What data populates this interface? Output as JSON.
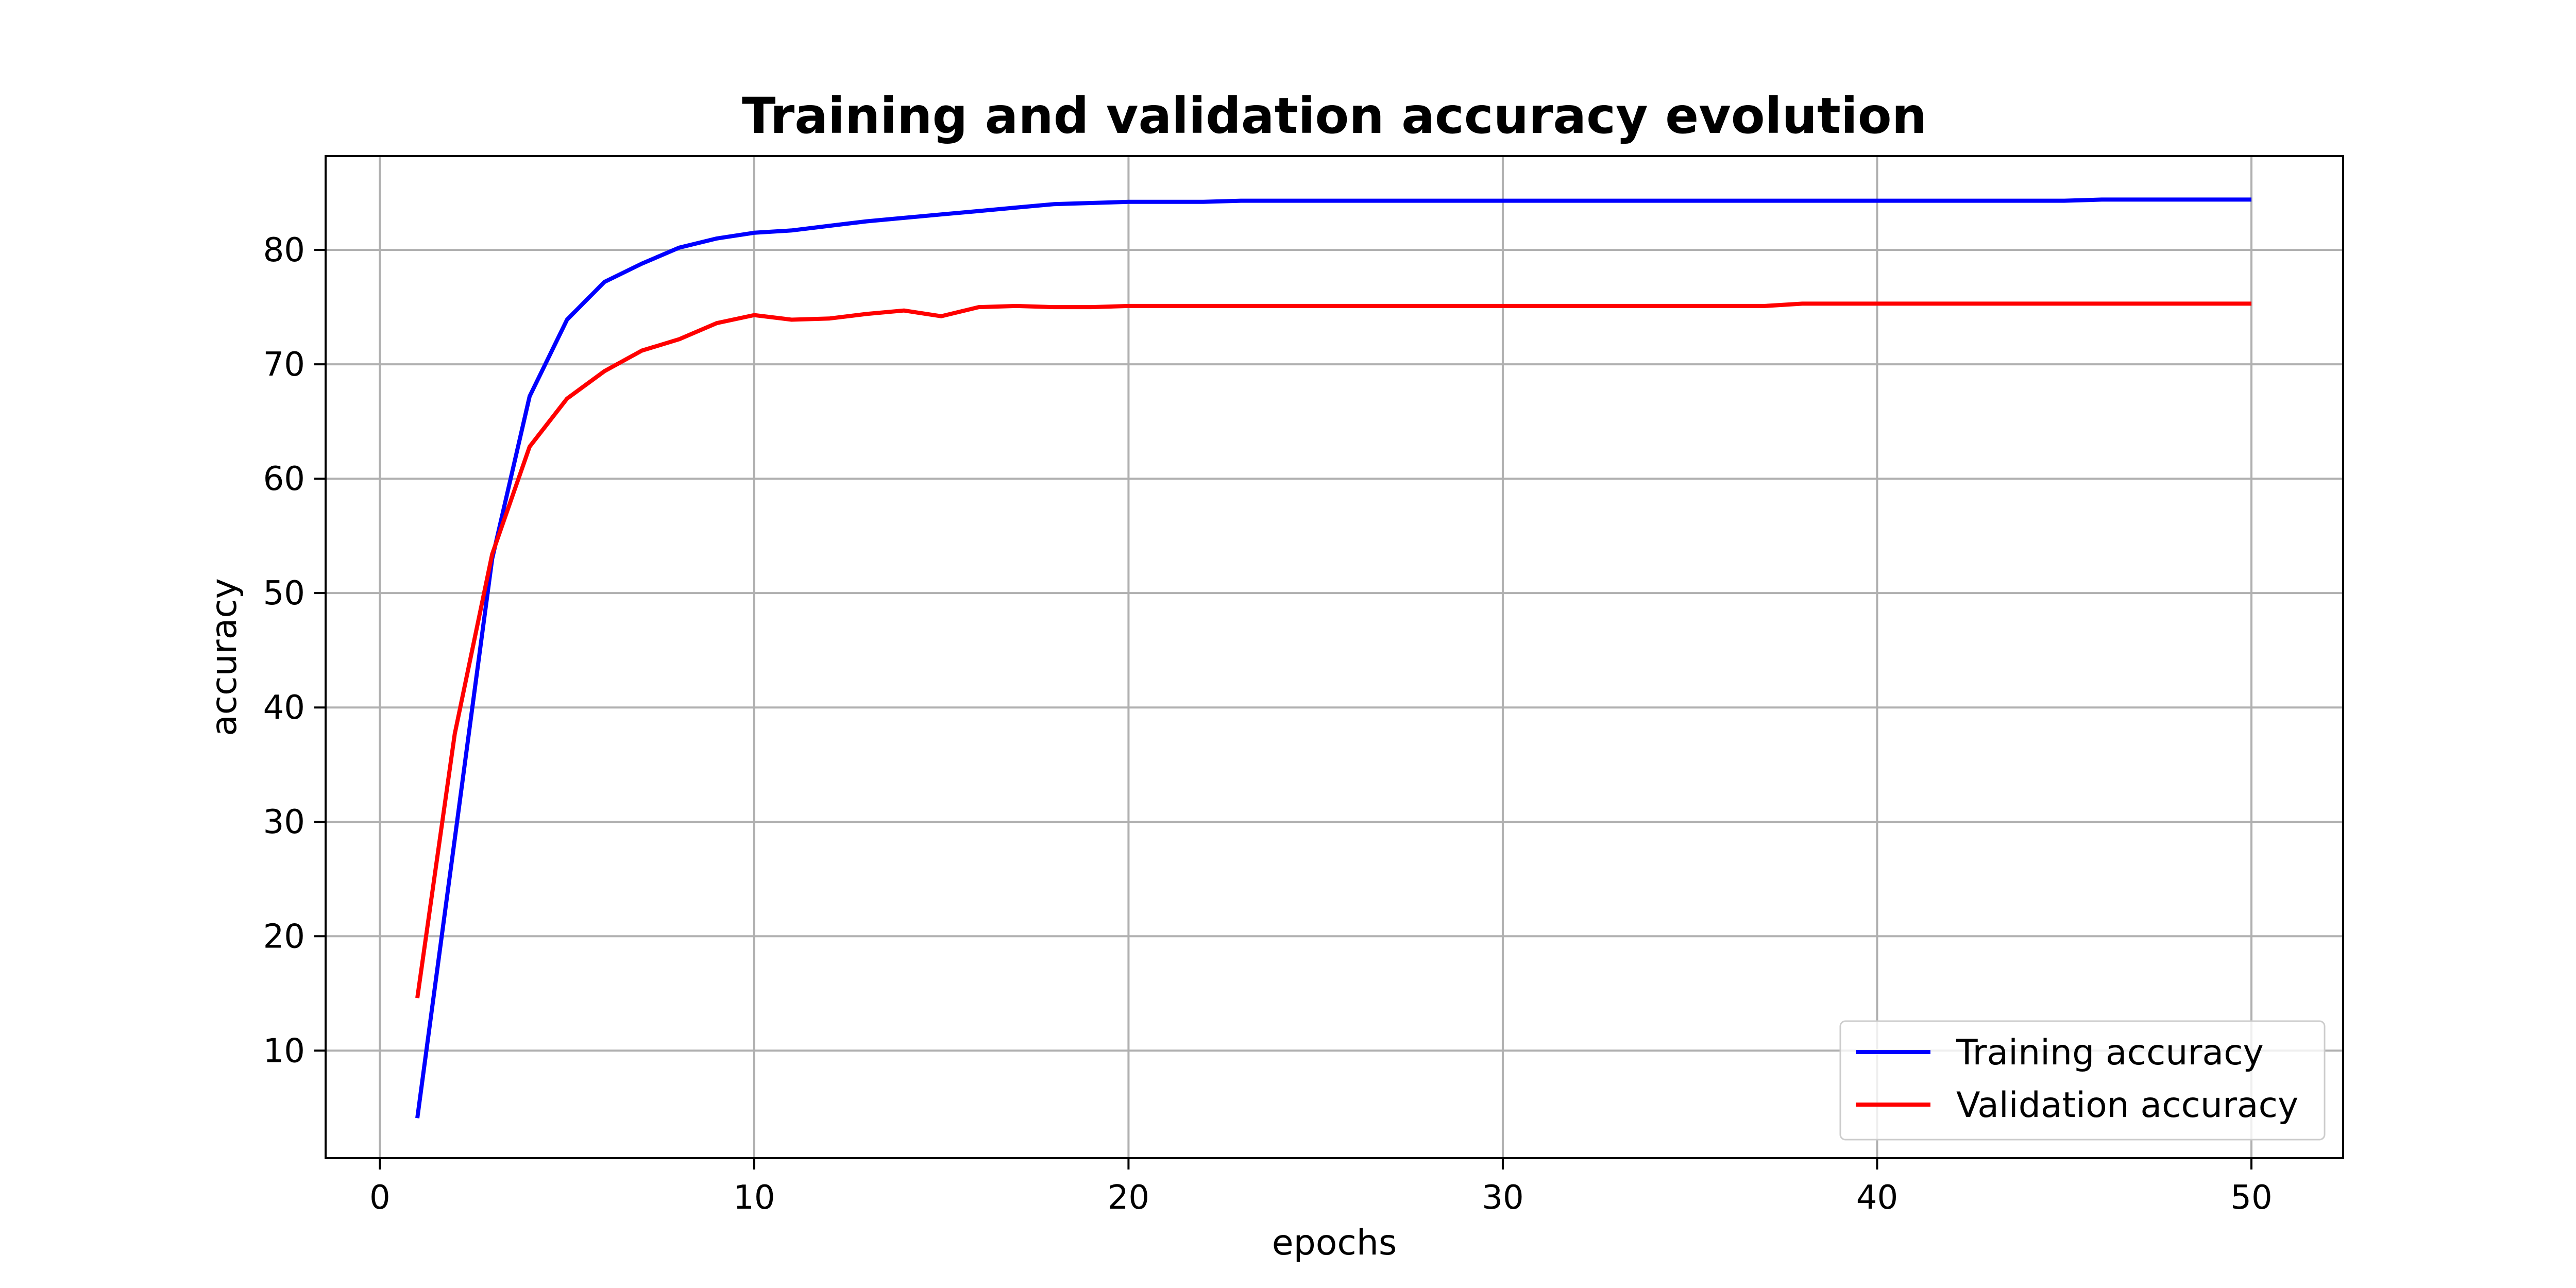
{
  "chart_data": {
    "type": "line",
    "title": "Training and validation accuracy evolution",
    "xlabel": "epochs",
    "ylabel": "accuracy",
    "xlim": [
      -1.45,
      52.45
    ],
    "ylim": [
      0.6,
      88.2
    ],
    "xticks": [
      0,
      10,
      20,
      30,
      40,
      50
    ],
    "yticks": [
      10,
      20,
      30,
      40,
      50,
      60,
      70,
      80
    ],
    "grid": true,
    "legend": "lower-right",
    "x": [
      1,
      2,
      3,
      4,
      5,
      6,
      7,
      8,
      9,
      10,
      11,
      12,
      13,
      14,
      15,
      16,
      17,
      18,
      19,
      20,
      21,
      22,
      23,
      24,
      25,
      26,
      27,
      28,
      29,
      30,
      31,
      32,
      33,
      34,
      35,
      36,
      37,
      38,
      39,
      40,
      41,
      42,
      43,
      44,
      45,
      46,
      47,
      48,
      49,
      50
    ],
    "series": [
      {
        "name": "Training accuracy",
        "color": "#0000ff",
        "values": [
          4.1,
          28.5,
          53.0,
          67.2,
          73.9,
          77.2,
          78.8,
          80.2,
          81.0,
          81.5,
          81.7,
          82.1,
          82.5,
          82.8,
          83.1,
          83.4,
          83.7,
          84.0,
          84.1,
          84.2,
          84.2,
          84.2,
          84.3,
          84.3,
          84.3,
          84.3,
          84.3,
          84.3,
          84.3,
          84.3,
          84.3,
          84.3,
          84.3,
          84.3,
          84.3,
          84.3,
          84.3,
          84.3,
          84.3,
          84.3,
          84.3,
          84.3,
          84.3,
          84.3,
          84.3,
          84.4,
          84.4,
          84.4,
          84.4,
          84.4
        ]
      },
      {
        "name": "Validation accuracy",
        "color": "#ff0000",
        "values": [
          14.6,
          37.7,
          53.4,
          62.8,
          67.0,
          69.4,
          71.2,
          72.2,
          73.6,
          74.3,
          73.9,
          74.0,
          74.4,
          74.7,
          74.2,
          75.0,
          75.1,
          75.0,
          75.0,
          75.1,
          75.1,
          75.1,
          75.1,
          75.1,
          75.1,
          75.1,
          75.1,
          75.1,
          75.1,
          75.1,
          75.1,
          75.1,
          75.1,
          75.1,
          75.1,
          75.1,
          75.1,
          75.3,
          75.3,
          75.3,
          75.3,
          75.3,
          75.3,
          75.3,
          75.3,
          75.3,
          75.3,
          75.3,
          75.3,
          75.3
        ]
      }
    ]
  }
}
